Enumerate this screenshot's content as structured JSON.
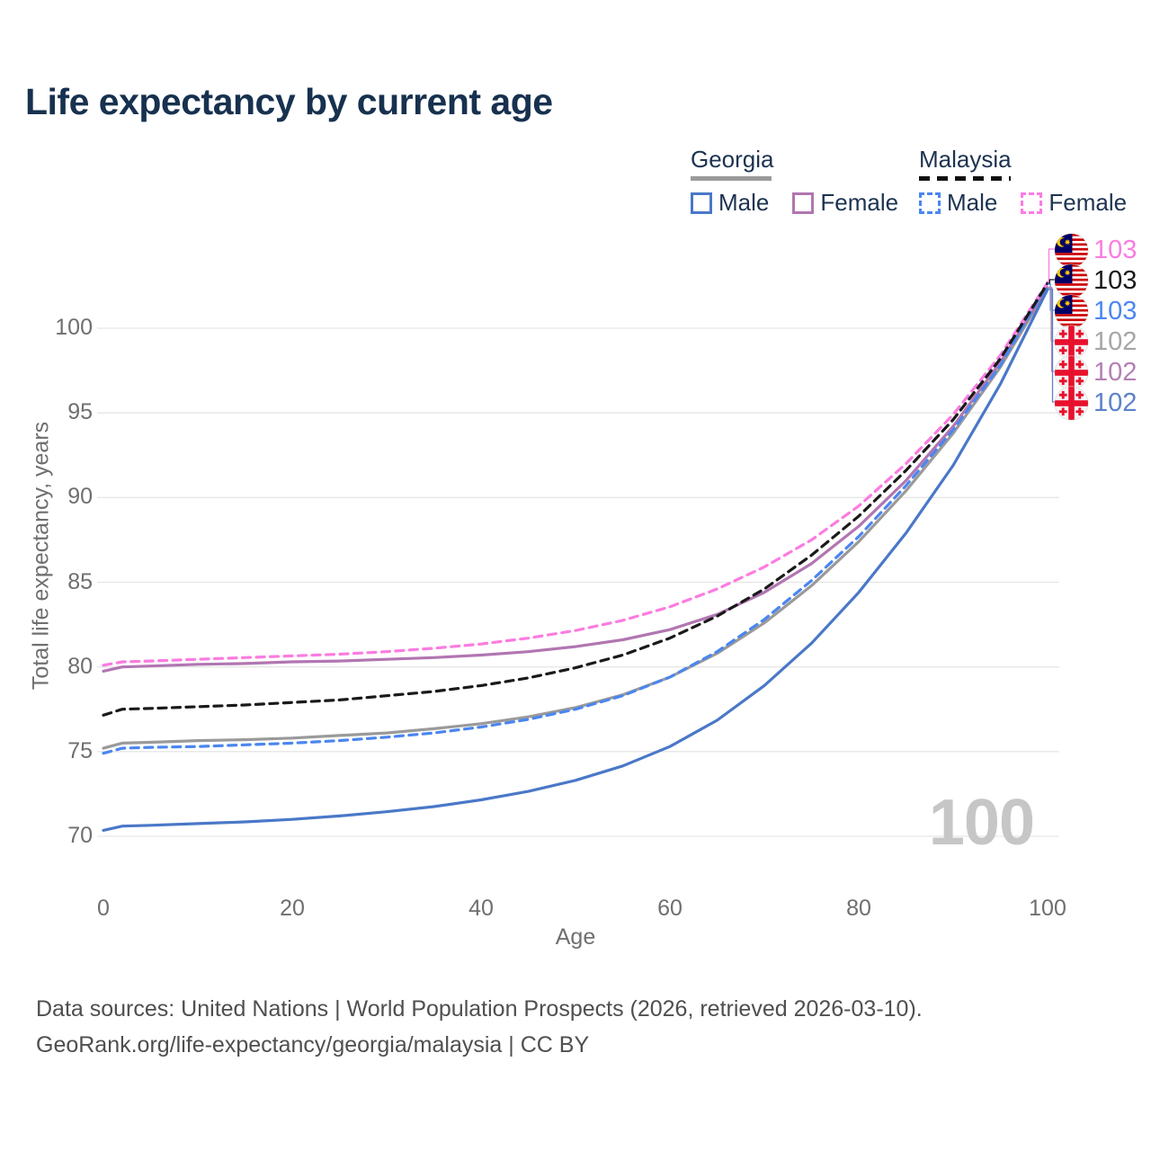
{
  "title": "Life expectancy by current age",
  "colors": {
    "title_text": "#17314f",
    "axis_text": "#6f6f6f",
    "grid": "#e6e6e6",
    "watermark": "#c6c6c6"
  },
  "legend": {
    "groups": [
      {
        "label": "Georgia",
        "underline_style": "solid",
        "underline_color": "#9a9a9a",
        "items": [
          {
            "label": "Male",
            "color": "#4a78c8",
            "dashed": false
          },
          {
            "label": "Female",
            "color": "#b176b1",
            "dashed": false
          }
        ]
      },
      {
        "label": "Malaysia",
        "underline_style": "dashed",
        "underline_color": "#111111",
        "items": [
          {
            "label": "Male",
            "color": "#4b86f0",
            "dashed": true
          },
          {
            "label": "Female",
            "color": "#fb7ce1",
            "dashed": true
          }
        ]
      }
    ]
  },
  "watermark": "100",
  "footer": {
    "line1": "Data sources: United Nations | World Population Prospects (2026, retrieved 2026-03-10).",
    "line2": "GeoRank.org/life-expectancy/georgia/malaysia | CC BY"
  },
  "chart_data": {
    "type": "line",
    "title": "Life expectancy by current age",
    "xlabel": "Age",
    "ylabel": "Total life expectancy, years",
    "xlim": [
      0,
      100
    ],
    "ylim": [
      68,
      104
    ],
    "x_ticks": [
      "0",
      "20",
      "40",
      "60",
      "80",
      "100"
    ],
    "y_ticks": [
      "70",
      "75",
      "80",
      "85",
      "90",
      "95",
      "100"
    ],
    "grid": "horizontal-only",
    "legend_position": "top-right",
    "x": [
      0,
      2,
      5,
      10,
      15,
      20,
      25,
      30,
      35,
      40,
      45,
      50,
      55,
      60,
      65,
      70,
      75,
      80,
      85,
      90,
      95,
      100
    ],
    "series": [
      {
        "name": "Georgia Both sexes",
        "country": "Georgia",
        "color": "#9a9a9a",
        "dashed": false,
        "values": [
          75.2,
          75.5,
          75.55,
          75.65,
          75.7,
          75.8,
          75.95,
          76.1,
          76.35,
          76.65,
          77.05,
          77.6,
          78.35,
          79.4,
          80.8,
          82.6,
          84.8,
          87.4,
          90.4,
          93.8,
          97.7,
          102.35
        ]
      },
      {
        "name": "Georgia Female",
        "country": "Georgia",
        "color": "#b176b1",
        "dashed": false,
        "values": [
          79.75,
          80.0,
          80.05,
          80.15,
          80.2,
          80.3,
          80.35,
          80.45,
          80.55,
          80.7,
          80.9,
          81.2,
          81.6,
          82.2,
          83.1,
          84.4,
          86.1,
          88.3,
          91.0,
          94.2,
          98.0,
          102.4
        ]
      },
      {
        "name": "Georgia Male",
        "country": "Georgia",
        "color": "#4a78c8",
        "dashed": false,
        "values": [
          70.35,
          70.6,
          70.65,
          70.75,
          70.85,
          71.0,
          71.2,
          71.45,
          71.75,
          72.15,
          72.65,
          73.3,
          74.15,
          75.3,
          76.85,
          78.9,
          81.4,
          84.4,
          87.9,
          91.9,
          96.7,
          102.3
        ]
      },
      {
        "name": "Malaysia Male",
        "country": "Malaysia",
        "color": "#4b86f0",
        "dashed": true,
        "values": [
          74.9,
          75.2,
          75.25,
          75.3,
          75.4,
          75.5,
          75.65,
          75.85,
          76.1,
          76.45,
          76.9,
          77.5,
          78.3,
          79.4,
          80.9,
          82.8,
          85.1,
          87.7,
          90.7,
          94.0,
          97.8,
          102.6
        ]
      },
      {
        "name": "Malaysia Female",
        "country": "Malaysia",
        "color": "#fb7ce1",
        "dashed": true,
        "values": [
          80.1,
          80.3,
          80.35,
          80.45,
          80.55,
          80.65,
          80.75,
          80.9,
          81.1,
          81.35,
          81.7,
          82.15,
          82.75,
          83.55,
          84.6,
          85.9,
          87.5,
          89.5,
          92.0,
          94.9,
          98.4,
          102.7
        ]
      },
      {
        "name": "Malaysia Both sexes",
        "country": "Malaysia",
        "color": "#1a1a1a",
        "dashed": true,
        "values": [
          77.15,
          77.5,
          77.55,
          77.65,
          77.75,
          77.9,
          78.05,
          78.3,
          78.55,
          78.9,
          79.35,
          79.95,
          80.7,
          81.7,
          83.0,
          84.6,
          86.6,
          88.9,
          91.6,
          94.6,
          98.2,
          102.65
        ]
      }
    ],
    "end_labels": [
      {
        "series": "Malaysia Female",
        "flag": "malaysia",
        "value": "103",
        "color": "#fb7ce1"
      },
      {
        "series": "Malaysia Both sexes",
        "flag": "malaysia",
        "value": "103",
        "color": "#1a1a1a"
      },
      {
        "series": "Malaysia Male",
        "flag": "malaysia",
        "value": "103",
        "color": "#4b86f0"
      },
      {
        "series": "Georgia Both sexes",
        "flag": "georgia",
        "value": "102",
        "color": "#a6a6a6"
      },
      {
        "series": "Georgia Female",
        "flag": "georgia",
        "value": "102",
        "color": "#b57fb5"
      },
      {
        "series": "Georgia Male",
        "flag": "georgia",
        "value": "102",
        "color": "#5b82c9"
      }
    ]
  }
}
